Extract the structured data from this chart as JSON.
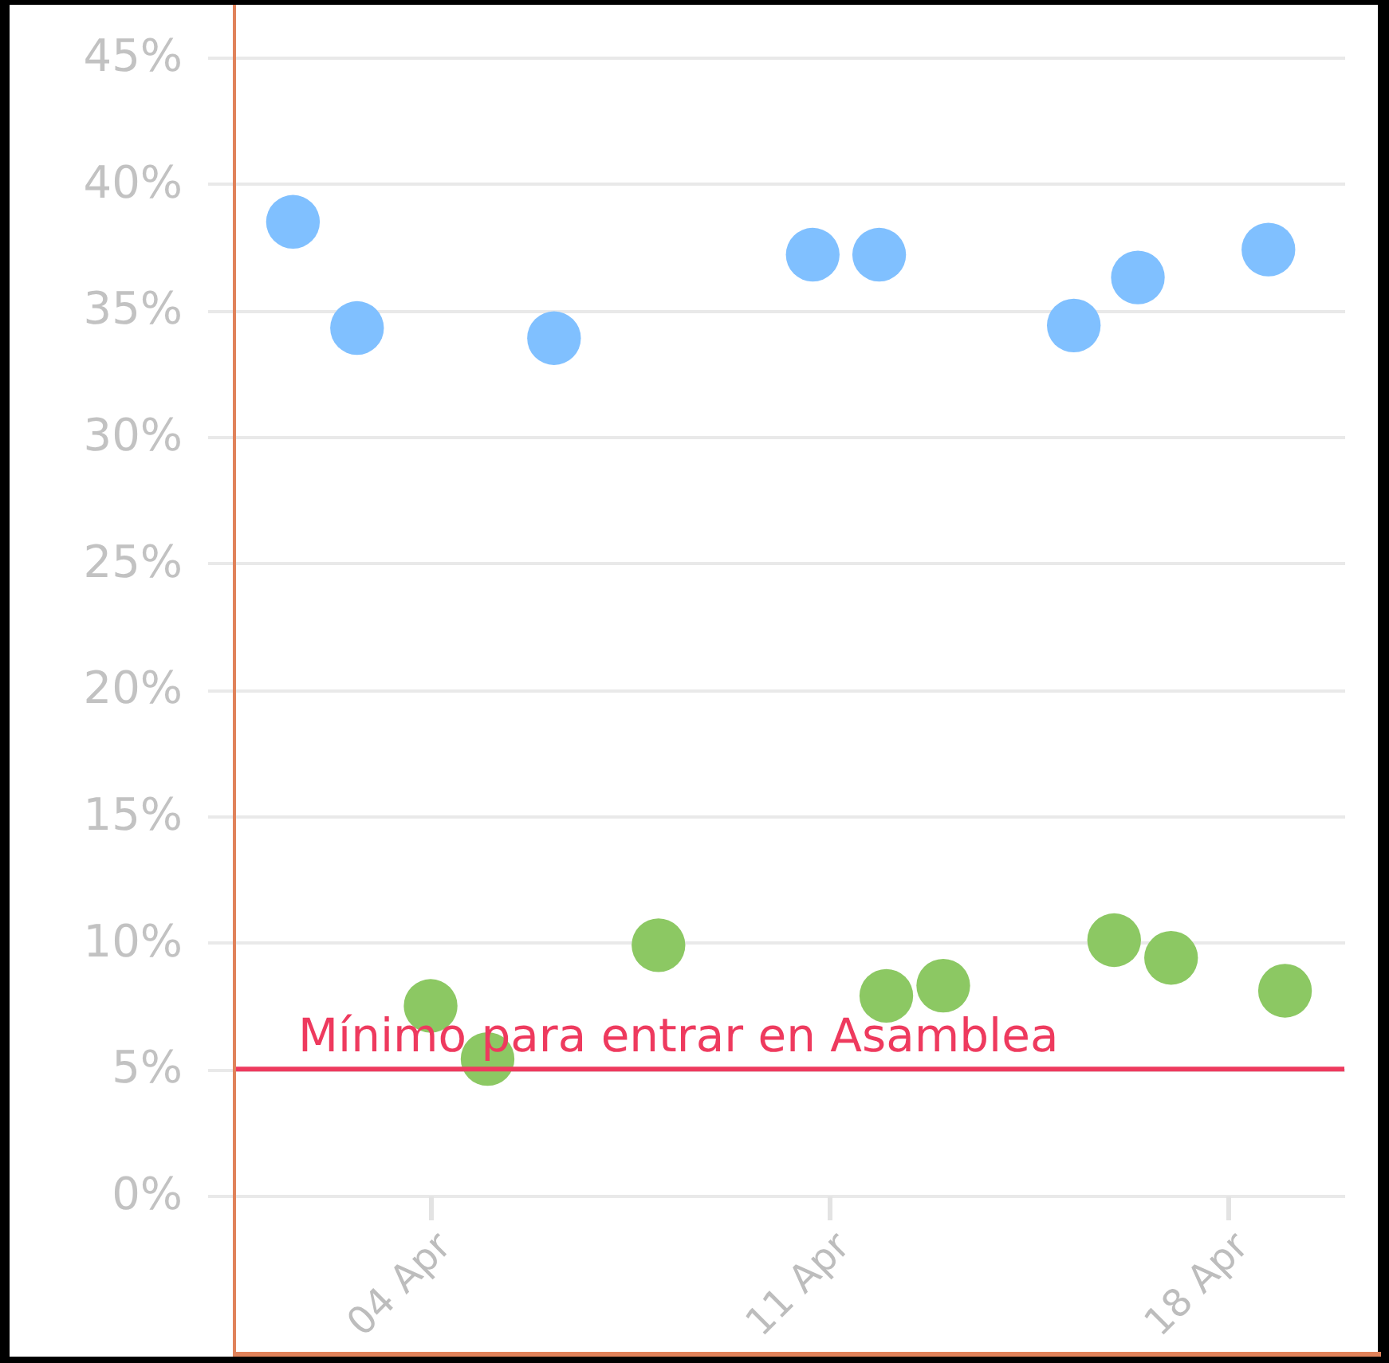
{
  "chart_data": {
    "type": "scatter",
    "series": [
      {
        "color": "#80c0ff",
        "x": [
          "--04-01T14:00",
          "--04-02T17:00",
          "--04-06T04:00",
          "--04-10T17:00",
          "--04-11T21:00",
          "--04-15T07:00",
          "--04-16T10:00",
          "--04-18T17:00"
        ],
        "values": [
          38.5,
          34.3,
          33.9,
          37.2,
          37.2,
          34.4,
          36.3,
          37.4
        ]
      },
      {
        "color": "#8cc863",
        "x": [
          "--04-04",
          "--04-05",
          "--04-08",
          "--04-12",
          "--04-13",
          "--04-16",
          "--04-17",
          "--04-19"
        ],
        "values": [
          7.5,
          5.4,
          9.9,
          7.9,
          8.3,
          10.1,
          9.4,
          8.1
        ]
      }
    ],
    "xlim": [
      "--03-31T13:20",
      "--04-20T01:00"
    ],
    "xticks": [
      {
        "value": "--04-04",
        "label": "04 Apr"
      },
      {
        "value": "--04-11",
        "label": "11 Apr"
      },
      {
        "value": "--04-18",
        "label": "18 Apr"
      }
    ],
    "ylim": [
      0,
      45
    ],
    "yticks": [
      {
        "value": 0,
        "label": "0%"
      },
      {
        "value": 5,
        "label": "5%"
      },
      {
        "value": 10,
        "label": "10%"
      },
      {
        "value": 15,
        "label": "15%"
      },
      {
        "value": 20,
        "label": "20%"
      },
      {
        "value": 25,
        "label": "25%"
      },
      {
        "value": 30,
        "label": "30%"
      },
      {
        "value": 35,
        "label": "35%"
      },
      {
        "value": 40,
        "label": "40%"
      },
      {
        "value": 45,
        "label": "45%"
      }
    ],
    "grid": "y",
    "legend": false,
    "marker": "circle",
    "ref_lines": [
      {
        "axis": "y",
        "value": 5,
        "label": "Mínimo para entrar en Asamblea",
        "color": "#ee3a5e"
      }
    ]
  }
}
